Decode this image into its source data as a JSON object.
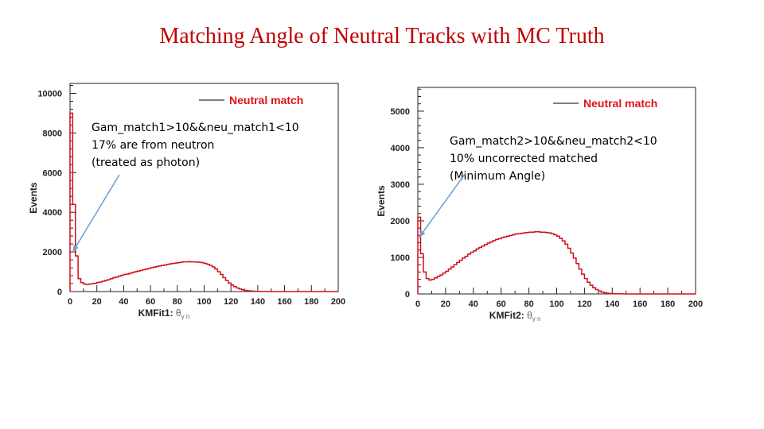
{
  "slide": {
    "title": "Matching Angle of Neutral Tracks with MC Truth"
  },
  "colors": {
    "title": "#c00000",
    "histogram": "#d01018",
    "legend_text": "#e0101a",
    "arrow": "#6a9fd3",
    "frame": "#222222"
  },
  "chart_data": [
    {
      "type": "histogram",
      "title": "",
      "xlabel": "KMFit1:",
      "xlabel_symbol": "θ",
      "xlabel_sub": "γ n",
      "ylabel": "Events",
      "xlim": [
        0,
        200
      ],
      "ylim": [
        0,
        10500
      ],
      "xticks": [
        0,
        20,
        40,
        60,
        80,
        100,
        120,
        140,
        160,
        180,
        200
      ],
      "xtick_labels": [
        "0",
        "20",
        "40",
        "60",
        "80",
        "100",
        "120",
        "140",
        "160",
        "180",
        "200"
      ],
      "yticks": [
        0,
        2000,
        4000,
        6000,
        8000,
        10000
      ],
      "ytick_labels": [
        "0",
        "2000",
        "4000",
        "6000",
        "8000",
        "10000"
      ],
      "legend": {
        "label": "Neutral match",
        "position": "top-right"
      },
      "bin_width": 2,
      "values": [
        9000,
        4400,
        1800,
        650,
        450,
        380,
        360,
        380,
        400,
        420,
        460,
        480,
        520,
        560,
        600,
        650,
        700,
        730,
        780,
        820,
        860,
        880,
        920,
        960,
        1000,
        1030,
        1060,
        1100,
        1130,
        1160,
        1200,
        1230,
        1260,
        1290,
        1320,
        1340,
        1370,
        1400,
        1420,
        1440,
        1460,
        1480,
        1500,
        1500,
        1510,
        1500,
        1500,
        1490,
        1480,
        1460,
        1420,
        1380,
        1320,
        1240,
        1140,
        1000,
        860,
        700,
        560,
        430,
        330,
        250,
        180,
        130,
        90,
        60,
        40,
        28,
        18,
        12,
        8,
        6,
        4,
        3,
        2,
        2,
        1,
        1,
        1,
        0,
        0,
        0,
        0,
        0,
        0,
        0,
        0,
        0,
        0,
        0,
        0,
        0,
        0,
        0,
        0,
        0,
        0,
        0,
        0,
        0
      ],
      "annotation": {
        "lines": [
          "Gam_match1>10&&neu_match1<10",
          "17% are from neutron",
          "(treated as photon)"
        ],
        "arrow_target": [
          2,
          2000
        ]
      }
    },
    {
      "type": "histogram",
      "title": "",
      "xlabel": "KMFit2:",
      "xlabel_symbol": "θ",
      "xlabel_sub": "γ n",
      "ylabel": "Events",
      "xlim": [
        0,
        200
      ],
      "ylim": [
        0,
        5650
      ],
      "xticks": [
        0,
        20,
        40,
        60,
        80,
        100,
        120,
        140,
        160,
        180,
        200
      ],
      "xtick_labels": [
        "0",
        "20",
        "40",
        "60",
        "80",
        "100",
        "120",
        "140",
        "160",
        "180",
        "200"
      ],
      "yticks": [
        0,
        1000,
        2000,
        3000,
        4000,
        5000
      ],
      "ytick_labels": [
        "0",
        "1000",
        "2000",
        "3000",
        "4000",
        "5000"
      ],
      "legend": {
        "label": "Neutral match",
        "position": "top-right"
      },
      "bin_width": 2,
      "values": [
        2100,
        1100,
        600,
        420,
        380,
        400,
        440,
        480,
        520,
        570,
        620,
        680,
        740,
        800,
        860,
        920,
        980,
        1030,
        1090,
        1140,
        1180,
        1230,
        1270,
        1310,
        1350,
        1390,
        1420,
        1460,
        1490,
        1510,
        1540,
        1560,
        1580,
        1600,
        1620,
        1640,
        1650,
        1660,
        1670,
        1680,
        1690,
        1690,
        1700,
        1700,
        1690,
        1690,
        1680,
        1670,
        1650,
        1620,
        1580,
        1520,
        1450,
        1360,
        1250,
        1120,
        980,
        830,
        680,
        540,
        420,
        320,
        240,
        170,
        120,
        80,
        50,
        32,
        20,
        12,
        8,
        5,
        3,
        2,
        1,
        1,
        1,
        0,
        0,
        0,
        0,
        0,
        0,
        0,
        0,
        0,
        0,
        0,
        0,
        0,
        0,
        0,
        0,
        0,
        0,
        0,
        0,
        0,
        0,
        0
      ],
      "annotation": {
        "lines": [
          "Gam_match2>10&&neu_match2<10",
          "10% uncorrected matched",
          "(Minimum Angle)"
        ],
        "arrow_target": [
          1,
          1550
        ]
      }
    }
  ]
}
